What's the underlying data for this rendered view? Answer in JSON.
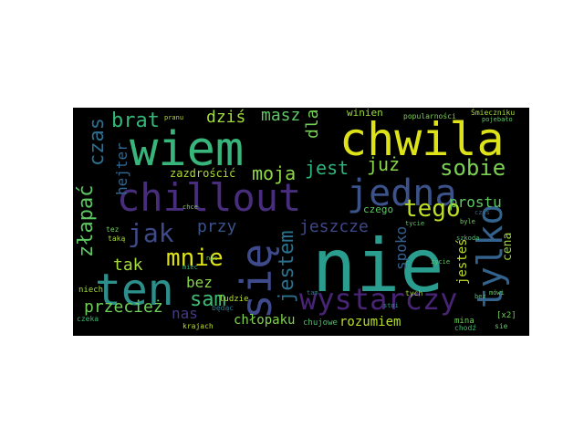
{
  "wordcloud": {
    "background": "#000000",
    "words": [
      {
        "text": "nie",
        "color": "#2a9d8f"
      },
      {
        "text": "wiem",
        "color": "#38b57a"
      },
      {
        "text": "chwila",
        "color": "#dde318"
      },
      {
        "text": "chillout",
        "color": "#472d7b"
      },
      {
        "text": "ten",
        "color": "#2c8f8c"
      },
      {
        "text": "się",
        "color": "#3e4a89"
      },
      {
        "text": "jedna",
        "color": "#3b528b"
      },
      {
        "text": "tylko",
        "color": "#33638d"
      },
      {
        "text": "wystarczy",
        "color": "#482475"
      },
      {
        "text": "tego",
        "color": "#bddf26"
      },
      {
        "text": "sobie",
        "color": "#7ad151"
      },
      {
        "text": "jak",
        "color": "#3e4a89"
      },
      {
        "text": "mnie",
        "color": "#dde318"
      },
      {
        "text": "złapać",
        "color": "#5ec962"
      },
      {
        "text": "czas",
        "color": "#2e6f8e"
      },
      {
        "text": "brat",
        "color": "#35b779"
      },
      {
        "text": "sam",
        "color": "#3fbc73"
      },
      {
        "text": "jestem",
        "color": "#2c728e"
      },
      {
        "text": "moja",
        "color": "#8fd744"
      },
      {
        "text": "już",
        "color": "#86d549"
      },
      {
        "text": "dziś",
        "color": "#9fda3a"
      },
      {
        "text": "masz",
        "color": "#5ec962"
      },
      {
        "text": "jest",
        "color": "#2fb47c"
      },
      {
        "text": "dla",
        "color": "#75d054"
      },
      {
        "text": "hejter",
        "color": "#31668e"
      },
      {
        "text": "przy",
        "color": "#3b528b"
      },
      {
        "text": "tak",
        "color": "#a5db36"
      },
      {
        "text": "bez",
        "color": "#87d549"
      },
      {
        "text": "przecież",
        "color": "#6ece58"
      },
      {
        "text": "nas",
        "color": "#443983"
      },
      {
        "text": "jeszcze",
        "color": "#3f4788"
      },
      {
        "text": "prostu",
        "color": "#5ec962"
      },
      {
        "text": "spoko",
        "color": "#35608d"
      },
      {
        "text": "jesteś",
        "color": "#c2df23"
      },
      {
        "text": "cena",
        "color": "#9bd93c"
      },
      {
        "text": "chłopaku",
        "color": "#7fd34e"
      },
      {
        "text": "rozumiem",
        "color": "#b8de29"
      },
      {
        "text": "zazdrościć",
        "color": "#aadc32"
      },
      {
        "text": "winien",
        "color": "#9bd93c"
      },
      {
        "text": "czego",
        "color": "#5ec962"
      },
      {
        "text": "popularności",
        "color": "#7ad151"
      },
      {
        "text": "ludzie",
        "color": "#b5de2b"
      },
      {
        "text": "chujowe",
        "color": "#4ac16d"
      },
      {
        "text": "krajach",
        "color": "#b8de29"
      },
      {
        "text": "niech",
        "color": "#a0da39"
      },
      {
        "text": "będąc",
        "color": "#2a788e"
      },
      {
        "text": "czeka",
        "color": "#3fbc73"
      },
      {
        "text": "taką",
        "color": "#a8db34"
      },
      {
        "text": "mina",
        "color": "#6ece58"
      },
      {
        "text": "chodź",
        "color": "#3fbc73"
      },
      {
        "text": "[x2]",
        "color": "#6ece58"
      },
      {
        "text": "bez",
        "color": "#4ac16d"
      },
      {
        "text": "sie",
        "color": "#5ec962"
      },
      {
        "text": "mówi",
        "color": "#5ec962"
      },
      {
        "text": "Śmieczniku",
        "color": "#a8db34"
      },
      {
        "text": "pojebało",
        "color": "#5ec962"
      },
      {
        "text": "szkoda",
        "color": "#4ac16d"
      },
      {
        "text": "tam",
        "color": "#2a788e"
      },
      {
        "text": "nic",
        "color": "#5ec962"
      },
      {
        "text": "tez",
        "color": "#6ece58"
      },
      {
        "text": "chce",
        "color": "#7ad151"
      },
      {
        "text": "pranu",
        "color": "#b5de2b"
      },
      {
        "text": "tycie",
        "color": "#5ec962"
      },
      {
        "text": "tych",
        "color": "#a5db36"
      },
      {
        "text": "byle",
        "color": "#6ece58"
      },
      {
        "text": "czas",
        "color": "#31668e"
      },
      {
        "text": "miec",
        "color": "#35b779"
      },
      {
        "text": "życie",
        "color": "#5ec962"
      },
      {
        "text": "stoi",
        "color": "#1f9e89"
      }
    ]
  }
}
